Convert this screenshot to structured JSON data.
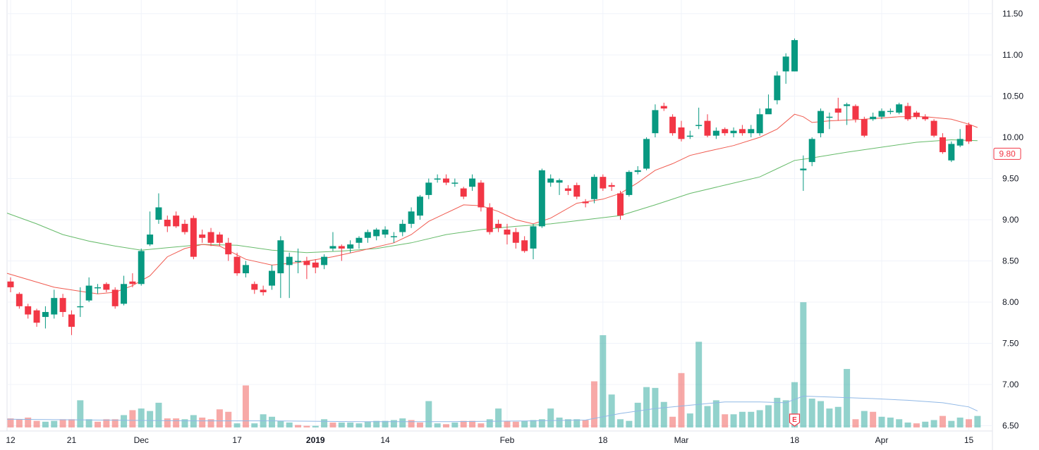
{
  "chart_data": {
    "type": "candlestick",
    "title": "",
    "ylim": [
      6.5,
      11.7
    ],
    "y_ticks": [
      "11.50",
      "11.00",
      "10.50",
      "10.00",
      "9.50",
      "9.00",
      "8.50",
      "8.00",
      "7.50",
      "7.00",
      "6.50"
    ],
    "x_ticks": [
      {
        "label": "12",
        "bar": 0,
        "bold": false
      },
      {
        "label": "21",
        "bar": 7,
        "bold": false
      },
      {
        "label": "Dec",
        "bar": 15,
        "bold": false
      },
      {
        "label": "17",
        "bar": 26,
        "bold": false
      },
      {
        "label": "2019",
        "bar": 35,
        "bold": true
      },
      {
        "label": "14",
        "bar": 43,
        "bold": false
      },
      {
        "label": "Feb",
        "bar": 57,
        "bold": false
      },
      {
        "label": "18",
        "bar": 68,
        "bold": false
      },
      {
        "label": "Mar",
        "bar": 77,
        "bold": false
      },
      {
        "label": "18",
        "bar": 90,
        "bold": false
      },
      {
        "label": "Apr",
        "bar": 100,
        "bold": false
      },
      {
        "label": "15",
        "bar": 110,
        "bold": false
      }
    ],
    "last_price_label": "9.80",
    "earnings_marker": {
      "label": "E",
      "bar": 90
    },
    "candles": [
      [
        8.25,
        8.18,
        8.3,
        8.12
      ],
      [
        8.1,
        7.95,
        8.12,
        7.92
      ],
      [
        7.95,
        7.85,
        7.98,
        7.8
      ],
      [
        7.9,
        7.75,
        7.92,
        7.7
      ],
      [
        7.82,
        7.88,
        7.95,
        7.68
      ],
      [
        7.85,
        8.05,
        8.15,
        7.8
      ],
      [
        8.05,
        7.88,
        8.1,
        7.82
      ],
      [
        7.85,
        7.7,
        7.9,
        7.6
      ],
      [
        7.95,
        7.95,
        8.18,
        7.82
      ],
      [
        8.02,
        8.2,
        8.3,
        8.0
      ],
      [
        8.18,
        8.18,
        8.22,
        8.1
      ],
      [
        8.22,
        8.15,
        8.24,
        8.12
      ],
      [
        8.15,
        7.95,
        8.18,
        7.92
      ],
      [
        7.98,
        8.22,
        8.32,
        7.96
      ],
      [
        8.25,
        8.22,
        8.35,
        8.18
      ],
      [
        8.22,
        8.62,
        8.65,
        8.2
      ],
      [
        8.7,
        8.82,
        9.1,
        8.68
      ],
      [
        9.0,
        9.15,
        9.32,
        8.95
      ],
      [
        9.0,
        8.92,
        9.05,
        8.85
      ],
      [
        9.05,
        8.92,
        9.1,
        8.9
      ],
      [
        8.95,
        8.85,
        9.0,
        8.82
      ],
      [
        9.02,
        8.55,
        9.05,
        8.52
      ],
      [
        8.82,
        8.78,
        8.88,
        8.72
      ],
      [
        8.85,
        8.72,
        8.9,
        8.68
      ],
      [
        8.82,
        8.72,
        8.85,
        8.68
      ],
      [
        8.72,
        8.58,
        8.78,
        8.5
      ],
      [
        8.55,
        8.35,
        8.6,
        8.32
      ],
      [
        8.35,
        8.45,
        8.5,
        8.3
      ],
      [
        8.22,
        8.15,
        8.25,
        8.1
      ],
      [
        8.15,
        8.12,
        8.2,
        8.08
      ],
      [
        8.2,
        8.38,
        8.45,
        8.15
      ],
      [
        8.35,
        8.75,
        8.8,
        8.05
      ],
      [
        8.45,
        8.55,
        8.6,
        8.05
      ],
      [
        8.5,
        8.5,
        8.65,
        8.35
      ],
      [
        8.5,
        8.45,
        8.55,
        8.28
      ],
      [
        8.48,
        8.42,
        8.52,
        8.35
      ],
      [
        8.45,
        8.55,
        8.58,
        8.4
      ],
      [
        8.65,
        8.68,
        8.85,
        8.62
      ],
      [
        8.68,
        8.65,
        8.7,
        8.5
      ],
      [
        8.65,
        8.7,
        8.75,
        8.6
      ],
      [
        8.72,
        8.78,
        8.8,
        8.65
      ],
      [
        8.78,
        8.85,
        8.88,
        8.72
      ],
      [
        8.8,
        8.88,
        8.9,
        8.75
      ],
      [
        8.82,
        8.88,
        8.92,
        8.78
      ],
      [
        8.8,
        8.8,
        8.85,
        8.72
      ],
      [
        8.85,
        8.95,
        9.0,
        8.8
      ],
      [
        8.95,
        9.1,
        9.15,
        8.9
      ],
      [
        9.05,
        9.28,
        9.3,
        9.0
      ],
      [
        9.3,
        9.45,
        9.5,
        9.25
      ],
      [
        9.5,
        9.5,
        9.55,
        9.45
      ],
      [
        9.5,
        9.45,
        9.55,
        9.42
      ],
      [
        9.45,
        9.45,
        9.5,
        9.4
      ],
      [
        9.38,
        9.28,
        9.4,
        9.25
      ],
      [
        9.4,
        9.5,
        9.55,
        9.35
      ],
      [
        9.45,
        9.15,
        9.48,
        9.1
      ],
      [
        9.15,
        8.85,
        9.2,
        8.82
      ],
      [
        8.95,
        8.9,
        9.0,
        8.85
      ],
      [
        8.88,
        8.82,
        8.95,
        8.7
      ],
      [
        8.85,
        8.72,
        8.9,
        8.65
      ],
      [
        8.75,
        8.62,
        8.8,
        8.6
      ],
      [
        8.65,
        8.92,
        8.95,
        8.52
      ],
      [
        8.92,
        9.6,
        9.62,
        8.9
      ],
      [
        9.45,
        9.5,
        9.55,
        9.4
      ],
      [
        9.45,
        9.48,
        9.5,
        9.3
      ],
      [
        9.38,
        9.35,
        9.42,
        9.3
      ],
      [
        9.42,
        9.28,
        9.45,
        9.25
      ],
      [
        9.22,
        9.2,
        9.25,
        9.15
      ],
      [
        9.25,
        9.52,
        9.55,
        9.2
      ],
      [
        9.52,
        9.38,
        9.55,
        9.35
      ],
      [
        9.42,
        9.4,
        9.45,
        9.35
      ],
      [
        9.32,
        9.05,
        9.35,
        9.0
      ],
      [
        9.3,
        9.58,
        9.6,
        9.28
      ],
      [
        9.58,
        9.6,
        9.65,
        9.55
      ],
      [
        9.62,
        9.98,
        10.0,
        9.6
      ],
      [
        10.05,
        10.33,
        10.4,
        10.0
      ],
      [
        10.38,
        10.35,
        10.42,
        10.32
      ],
      [
        10.25,
        10.05,
        10.28,
        10.02
      ],
      [
        10.12,
        9.98,
        10.2,
        9.95
      ],
      [
        10.02,
        10.02,
        10.08,
        9.98
      ],
      [
        10.15,
        10.15,
        10.36,
        10.1
      ],
      [
        10.2,
        10.02,
        10.28,
        10.0
      ],
      [
        10.02,
        10.08,
        10.12,
        9.98
      ],
      [
        10.1,
        10.05,
        10.12,
        10.02
      ],
      [
        10.05,
        10.08,
        10.12,
        10.0
      ],
      [
        10.1,
        10.05,
        10.15,
        10.02
      ],
      [
        10.05,
        10.1,
        10.15,
        10.0
      ],
      [
        10.05,
        10.28,
        10.35,
        10.02
      ],
      [
        10.28,
        10.35,
        10.52,
        10.3
      ],
      [
        10.45,
        10.75,
        10.8,
        10.4
      ],
      [
        10.8,
        10.98,
        11.02,
        10.65
      ],
      [
        10.8,
        11.18,
        11.2,
        10.8
      ],
      [
        9.6,
        9.62,
        9.78,
        9.35
      ],
      [
        9.7,
        9.98,
        10.0,
        9.65
      ],
      [
        10.05,
        10.32,
        10.35,
        10.0
      ],
      [
        10.25,
        10.25,
        10.3,
        10.1
      ],
      [
        10.35,
        10.3,
        10.48,
        10.2
      ],
      [
        10.38,
        10.4,
        10.42,
        10.15
      ],
      [
        10.38,
        10.22,
        10.4,
        10.18
      ],
      [
        10.22,
        10.02,
        10.25,
        10.0
      ],
      [
        10.22,
        10.25,
        10.3,
        10.2
      ],
      [
        10.25,
        10.32,
        10.35,
        10.22
      ],
      [
        10.32,
        10.32,
        10.35,
        10.28
      ],
      [
        10.3,
        10.4,
        10.42,
        10.28
      ],
      [
        10.38,
        10.22,
        10.42,
        10.2
      ],
      [
        10.3,
        10.25,
        10.32,
        10.22
      ],
      [
        10.25,
        10.22,
        10.28,
        10.2
      ],
      [
        10.2,
        10.02,
        10.22,
        10.0
      ],
      [
        10.0,
        9.82,
        10.05,
        9.8
      ],
      [
        9.72,
        9.92,
        9.95,
        9.7
      ],
      [
        9.9,
        9.98,
        10.1,
        9.88
      ],
      [
        10.15,
        9.95,
        10.18,
        9.92
      ]
    ],
    "volume": [
      [
        11,
        "d"
      ],
      [
        10,
        "d"
      ],
      [
        12,
        "d"
      ],
      [
        8,
        "d"
      ],
      [
        7,
        "u"
      ],
      [
        8,
        "u"
      ],
      [
        10,
        "d"
      ],
      [
        10,
        "d"
      ],
      [
        33,
        "u"
      ],
      [
        10,
        "u"
      ],
      [
        7,
        "d"
      ],
      [
        10,
        "d"
      ],
      [
        10,
        "d"
      ],
      [
        15,
        "u"
      ],
      [
        21,
        "d"
      ],
      [
        23,
        "u"
      ],
      [
        20,
        "u"
      ],
      [
        30,
        "u"
      ],
      [
        11,
        "d"
      ],
      [
        11,
        "d"
      ],
      [
        10,
        "u"
      ],
      [
        15,
        "u"
      ],
      [
        12,
        "d"
      ],
      [
        10,
        "d"
      ],
      [
        22,
        "d"
      ],
      [
        19,
        "d"
      ],
      [
        5,
        "u"
      ],
      [
        51,
        "d"
      ],
      [
        5,
        "u"
      ],
      [
        16,
        "u"
      ],
      [
        13,
        "u"
      ],
      [
        8,
        "u"
      ],
      [
        6,
        "u"
      ],
      [
        3,
        "d"
      ],
      [
        2,
        "d"
      ],
      [
        2,
        "u"
      ],
      [
        10,
        "u"
      ],
      [
        6,
        "d"
      ],
      [
        6,
        "u"
      ],
      [
        6,
        "u"
      ],
      [
        5,
        "u"
      ],
      [
        7,
        "u"
      ],
      [
        8,
        "u"
      ],
      [
        8,
        "u"
      ],
      [
        9,
        "u"
      ],
      [
        11,
        "u"
      ],
      [
        9,
        "d"
      ],
      [
        6,
        "d"
      ],
      [
        32,
        "u"
      ],
      [
        5,
        "u"
      ],
      [
        4,
        "d"
      ],
      [
        6,
        "u"
      ],
      [
        8,
        "d"
      ],
      [
        8,
        "d"
      ],
      [
        5,
        "d"
      ],
      [
        10,
        "u"
      ],
      [
        23,
        "u"
      ],
      [
        8,
        "d"
      ],
      [
        7,
        "d"
      ],
      [
        8,
        "u"
      ],
      [
        9,
        "u"
      ],
      [
        10,
        "u"
      ],
      [
        23,
        "u"
      ],
      [
        12,
        "u"
      ],
      [
        10,
        "u"
      ],
      [
        10,
        "u"
      ],
      [
        9,
        "d"
      ],
      [
        56,
        "d"
      ],
      [
        112,
        "u"
      ],
      [
        40,
        "u"
      ],
      [
        10,
        "u"
      ],
      [
        8,
        "u"
      ],
      [
        30,
        "u"
      ],
      [
        49,
        "u"
      ],
      [
        48,
        "u"
      ],
      [
        31,
        "u"
      ],
      [
        13,
        "d"
      ],
      [
        66,
        "d"
      ],
      [
        17,
        "u"
      ],
      [
        104,
        "u"
      ],
      [
        26,
        "u"
      ],
      [
        33,
        "u"
      ],
      [
        16,
        "d"
      ],
      [
        16,
        "u"
      ],
      [
        19,
        "u"
      ],
      [
        19,
        "u"
      ],
      [
        21,
        "u"
      ],
      [
        27,
        "u"
      ],
      [
        36,
        "u"
      ],
      [
        33,
        "u"
      ],
      [
        55,
        "u"
      ],
      [
        152,
        "u"
      ],
      [
        35,
        "u"
      ],
      [
        32,
        "u"
      ],
      [
        23,
        "u"
      ],
      [
        25,
        "u"
      ],
      [
        71,
        "u"
      ],
      [
        10,
        "d"
      ],
      [
        20,
        "u"
      ],
      [
        19,
        "d"
      ],
      [
        13,
        "u"
      ],
      [
        12,
        "u"
      ],
      [
        10,
        "u"
      ],
      [
        6,
        "u"
      ],
      [
        5,
        "d"
      ],
      [
        7,
        "u"
      ],
      [
        9,
        "u"
      ],
      [
        14,
        "d"
      ],
      [
        8,
        "u"
      ],
      [
        12,
        "u"
      ],
      [
        10,
        "d"
      ],
      [
        14,
        "u"
      ]
    ],
    "ma_short": [
      [
        0,
        8.35
      ],
      [
        5,
        8.18
      ],
      [
        10,
        8.1
      ],
      [
        12,
        8.12
      ],
      [
        14,
        8.2
      ],
      [
        16,
        8.32
      ],
      [
        18,
        8.55
      ],
      [
        20,
        8.65
      ],
      [
        22,
        8.7
      ],
      [
        24,
        8.68
      ],
      [
        27,
        8.52
      ],
      [
        30,
        8.45
      ],
      [
        33,
        8.48
      ],
      [
        37,
        8.55
      ],
      [
        40,
        8.62
      ],
      [
        44,
        8.72
      ],
      [
        46,
        8.82
      ],
      [
        48,
        8.98
      ],
      [
        50,
        9.08
      ],
      [
        52,
        9.18
      ],
      [
        54,
        9.17
      ],
      [
        56,
        9.1
      ],
      [
        58,
        9.0
      ],
      [
        60,
        8.95
      ],
      [
        62,
        9.02
      ],
      [
        65,
        9.2
      ],
      [
        68,
        9.25
      ],
      [
        70,
        9.32
      ],
      [
        72,
        9.45
      ],
      [
        74,
        9.6
      ],
      [
        76,
        9.68
      ],
      [
        78,
        9.78
      ],
      [
        80,
        9.83
      ],
      [
        83,
        9.9
      ],
      [
        86,
        10.0
      ],
      [
        88,
        10.1
      ],
      [
        90,
        10.28
      ],
      [
        91,
        10.25
      ],
      [
        92,
        10.18
      ],
      [
        94,
        10.2
      ],
      [
        98,
        10.22
      ],
      [
        102,
        10.25
      ],
      [
        105,
        10.25
      ],
      [
        108,
        10.22
      ],
      [
        110,
        10.16
      ],
      [
        111,
        10.12
      ]
    ],
    "ma_long": [
      [
        0,
        9.08
      ],
      [
        3,
        8.95
      ],
      [
        6,
        8.82
      ],
      [
        9,
        8.74
      ],
      [
        12,
        8.68
      ],
      [
        15,
        8.63
      ],
      [
        18,
        8.66
      ],
      [
        22,
        8.7
      ],
      [
        26,
        8.69
      ],
      [
        30,
        8.63
      ],
      [
        34,
        8.6
      ],
      [
        38,
        8.62
      ],
      [
        42,
        8.65
      ],
      [
        46,
        8.72
      ],
      [
        50,
        8.82
      ],
      [
        54,
        8.88
      ],
      [
        58,
        8.92
      ],
      [
        62,
        8.95
      ],
      [
        66,
        9.0
      ],
      [
        70,
        9.05
      ],
      [
        74,
        9.18
      ],
      [
        78,
        9.32
      ],
      [
        82,
        9.42
      ],
      [
        86,
        9.52
      ],
      [
        88,
        9.62
      ],
      [
        90,
        9.72
      ],
      [
        92,
        9.75
      ],
      [
        96,
        9.82
      ],
      [
        100,
        9.88
      ],
      [
        104,
        9.94
      ],
      [
        108,
        9.97
      ],
      [
        111,
        9.96
      ]
    ],
    "vol_ma": [
      [
        0,
        10
      ],
      [
        10,
        9
      ],
      [
        20,
        8
      ],
      [
        30,
        8
      ],
      [
        40,
        7
      ],
      [
        50,
        7
      ],
      [
        60,
        8
      ],
      [
        66,
        9
      ],
      [
        70,
        17
      ],
      [
        74,
        23
      ],
      [
        78,
        27
      ],
      [
        82,
        31
      ],
      [
        86,
        31
      ],
      [
        89,
        30
      ],
      [
        91,
        38
      ],
      [
        94,
        37
      ],
      [
        99,
        35
      ],
      [
        103,
        33
      ],
      [
        107,
        30
      ],
      [
        110,
        25
      ],
      [
        111,
        20
      ]
    ]
  }
}
